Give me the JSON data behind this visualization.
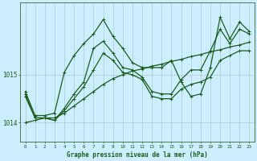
{
  "xlabel": "Graphe pression niveau de la mer (hPa)",
  "background_color": "#cceeff",
  "grid_color": "#aacccc",
  "line_color": "#1a5c1a",
  "ylim": [
    1013.6,
    1016.5
  ],
  "ytick_vals": [
    1014,
    1015
  ],
  "s0": [
    1014.65,
    1014.15,
    1014.15,
    1014.2,
    1015.05,
    1015.4,
    1015.65,
    1015.85,
    1016.15,
    1015.8,
    1015.55,
    1015.25,
    1015.15,
    1015.15,
    1015.15,
    1015.3,
    1014.85,
    1014.55,
    1014.6,
    1015.15,
    1016.2,
    1015.75,
    1016.1,
    1015.9
  ],
  "s1": [
    1014.55,
    1014.1,
    1014.1,
    1014.05,
    1014.3,
    1014.6,
    1014.85,
    1015.55,
    1015.7,
    1015.45,
    1015.15,
    1015.1,
    1014.95,
    1014.65,
    1014.6,
    1014.6,
    1014.9,
    1015.1,
    1015.1,
    1015.5,
    1015.95,
    1015.65,
    1015.95,
    1015.85
  ],
  "s2": [
    1014.6,
    1014.1,
    1014.1,
    1014.05,
    1014.25,
    1014.5,
    1014.75,
    1015.1,
    1015.45,
    1015.3,
    1015.05,
    1015.0,
    1014.9,
    1014.55,
    1014.5,
    1014.5,
    1014.7,
    1014.8,
    1014.85,
    1014.95,
    1015.3,
    1015.4,
    1015.5,
    1015.5
  ],
  "s3": [
    1014.0,
    1014.05,
    1014.1,
    1014.1,
    1014.2,
    1014.35,
    1014.5,
    1014.65,
    1014.8,
    1014.92,
    1015.0,
    1015.08,
    1015.12,
    1015.18,
    1015.22,
    1015.28,
    1015.32,
    1015.38,
    1015.42,
    1015.48,
    1015.52,
    1015.58,
    1015.62,
    1015.68
  ]
}
